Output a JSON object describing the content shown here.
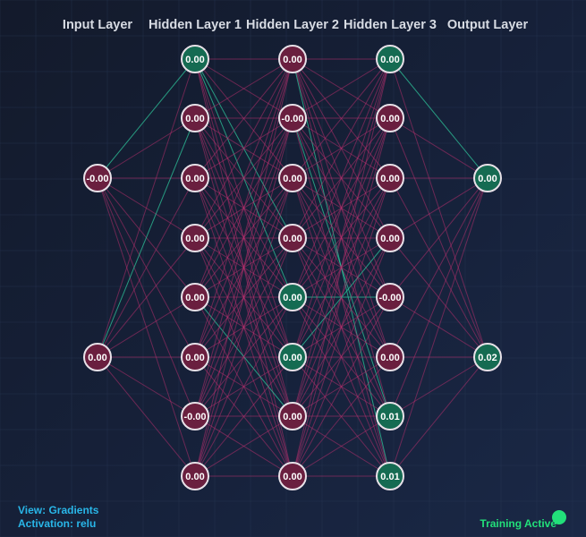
{
  "layers": [
    {
      "title": "Input Layer",
      "values": [
        "-0.00",
        "0.00"
      ]
    },
    {
      "title": "Hidden Layer 1",
      "values": [
        "0.00",
        "0.00",
        "0.00",
        "0.00",
        "0.00",
        "0.00",
        "-0.00",
        "0.00"
      ]
    },
    {
      "title": "Hidden Layer 2",
      "values": [
        "0.00",
        "-0.00",
        "0.00",
        "0.00",
        "0.00",
        "0.00",
        "0.00",
        "0.00"
      ]
    },
    {
      "title": "Hidden Layer 3",
      "values": [
        "0.00",
        "0.00",
        "0.00",
        "0.00",
        "-0.00",
        "0.00",
        "0.01",
        "0.01"
      ]
    },
    {
      "title": "Output Layer",
      "values": [
        "0.00",
        "0.02"
      ]
    }
  ],
  "positive_nodes": {
    "1": [
      0
    ],
    "2": [
      4,
      5
    ],
    "3": [
      0,
      6,
      7
    ],
    "4": [
      0,
      1
    ]
  },
  "view_text": "View: Gradients",
  "activation_text": "Activation: relu",
  "status_text": "Training Active",
  "colors": {
    "node_negative": "#6a1f3f",
    "node_positive": "#156b52",
    "node_stroke": "#e8e1e8",
    "link_negative": "#c03070",
    "link_positive": "#2ec49a",
    "info_text": "#29b6e8",
    "status": "#22e07a"
  }
}
